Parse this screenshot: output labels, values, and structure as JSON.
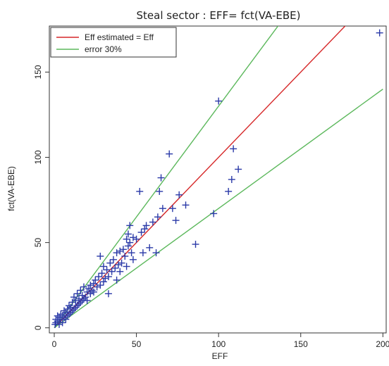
{
  "chart_data": {
    "type": "scatter",
    "title": "Steal sector :  EFF= fct(VA-EBE)",
    "xlabel": "EFF",
    "ylabel": "fct(VA-EBE)",
    "xlim": [
      -3,
      202
    ],
    "ylim": [
      -3,
      177
    ],
    "xticks": [
      0,
      50,
      100,
      150,
      200
    ],
    "yticks": [
      0,
      50,
      100,
      150
    ],
    "grid": false,
    "legend_position": "top-left",
    "legend": [
      {
        "label": "Eff estimated = Eff",
        "color": "#d62728"
      },
      {
        "label": "error 30%",
        "color": "#5cb85c"
      }
    ],
    "lines": [
      {
        "name": "Eff estimated = Eff",
        "color": "#d62728",
        "slope": 1.0,
        "x": [
          0,
          182
        ]
      },
      {
        "name": "error 30%",
        "color": "#5cb85c",
        "slope": 1.3,
        "x": [
          0,
          139
        ]
      },
      {
        "name": "error 30%",
        "color": "#5cb85c",
        "slope": 0.7,
        "x": [
          0,
          200
        ]
      }
    ],
    "series": [
      {
        "marker": "plus",
        "color": "#2b3aa8",
        "points": [
          [
            0.5,
            2
          ],
          [
            1,
            3
          ],
          [
            1,
            5
          ],
          [
            2,
            4
          ],
          [
            2,
            7
          ],
          [
            3,
            2
          ],
          [
            3,
            6
          ],
          [
            4,
            5
          ],
          [
            4,
            8
          ],
          [
            5,
            3
          ],
          [
            5,
            7
          ],
          [
            6,
            6
          ],
          [
            6,
            10
          ],
          [
            7,
            5
          ],
          [
            7,
            9
          ],
          [
            8,
            7
          ],
          [
            8,
            11
          ],
          [
            9,
            8
          ],
          [
            9,
            13
          ],
          [
            10,
            9
          ],
          [
            10,
            12
          ],
          [
            11,
            10
          ],
          [
            11,
            15
          ],
          [
            12,
            11
          ],
          [
            12,
            18
          ],
          [
            13,
            12
          ],
          [
            13,
            16
          ],
          [
            14,
            13
          ],
          [
            14,
            20
          ],
          [
            15,
            14
          ],
          [
            15,
            17
          ],
          [
            16,
            15
          ],
          [
            16,
            22
          ],
          [
            17,
            16
          ],
          [
            17,
            19
          ],
          [
            18,
            17
          ],
          [
            18,
            24
          ],
          [
            19,
            18
          ],
          [
            20,
            21
          ],
          [
            20,
            16
          ],
          [
            21,
            23
          ],
          [
            22,
            20
          ],
          [
            22,
            25
          ],
          [
            23,
            22
          ],
          [
            24,
            26
          ],
          [
            24,
            21
          ],
          [
            25,
            28
          ],
          [
            26,
            24
          ],
          [
            27,
            30
          ],
          [
            28,
            25
          ],
          [
            28,
            42
          ],
          [
            29,
            32
          ],
          [
            30,
            27
          ],
          [
            30,
            36
          ],
          [
            31,
            29
          ],
          [
            32,
            34
          ],
          [
            33,
            30
          ],
          [
            33,
            20
          ],
          [
            34,
            38
          ],
          [
            35,
            33
          ],
          [
            36,
            40
          ],
          [
            37,
            35
          ],
          [
            38,
            44
          ],
          [
            38,
            28
          ],
          [
            39,
            37
          ],
          [
            40,
            45
          ],
          [
            40,
            33
          ],
          [
            41,
            38
          ],
          [
            42,
            46
          ],
          [
            43,
            42
          ],
          [
            44,
            52
          ],
          [
            44,
            36
          ],
          [
            45,
            55
          ],
          [
            45,
            48
          ],
          [
            46,
            60
          ],
          [
            46,
            50
          ],
          [
            47,
            44
          ],
          [
            48,
            53
          ],
          [
            48,
            40
          ],
          [
            50,
            52
          ],
          [
            52,
            80
          ],
          [
            53,
            56
          ],
          [
            54,
            44
          ],
          [
            55,
            58
          ],
          [
            56,
            60
          ],
          [
            58,
            47
          ],
          [
            60,
            62
          ],
          [
            62,
            44
          ],
          [
            63,
            65
          ],
          [
            64,
            80
          ],
          [
            65,
            88
          ],
          [
            66,
            70
          ],
          [
            70,
            102
          ],
          [
            72,
            70
          ],
          [
            74,
            63
          ],
          [
            76,
            78
          ],
          [
            80,
            72
          ],
          [
            86,
            49
          ],
          [
            97,
            67
          ],
          [
            100,
            133
          ],
          [
            106,
            80
          ],
          [
            108,
            87
          ],
          [
            109,
            105
          ],
          [
            112,
            93
          ],
          [
            198,
            173
          ]
        ]
      }
    ]
  }
}
